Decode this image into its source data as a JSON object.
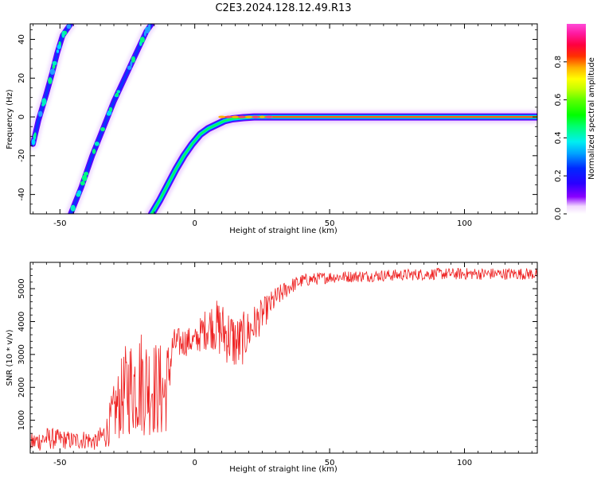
{
  "title": "C2E3.2024.128.12.49.R13",
  "colors": {
    "snr_line": "#ee2222",
    "frame": "#000000",
    "background": "#ffffff"
  },
  "chart_data": [
    {
      "type": "heatmap",
      "xlabel": "Height of straight line (km)",
      "ylabel": "Frequency (Hz)",
      "xlim": [
        -61,
        127
      ],
      "ylim": [
        -50,
        48
      ],
      "xticks": [
        -50,
        0,
        50,
        100
      ],
      "yticks": [
        -40,
        -20,
        0,
        20,
        40
      ],
      "grid": false,
      "colorbar": {
        "label": "Normalized spectral amplitude",
        "range": [
          0,
          1
        ],
        "ticks": [
          0.0,
          0.2,
          0.4,
          0.6,
          0.8
        ],
        "colormap": "gist_ncar-like (white, purple, blue, cyan, green, yellow, orange, red, pink)"
      },
      "traces": [
        {
          "description": "main trace",
          "points": [
            [
              -16,
              -50
            ],
            [
              -13,
              -43
            ],
            [
              -10,
              -35
            ],
            [
              -7,
              -27
            ],
            [
              -4,
              -20
            ],
            [
              -1,
              -14
            ],
            [
              2,
              -9
            ],
            [
              5,
              -6
            ],
            [
              8,
              -4
            ],
            [
              11,
              -2
            ],
            [
              14,
              -1
            ],
            [
              18,
              -0.4
            ],
            [
              22,
              0
            ],
            [
              30,
              0
            ],
            [
              127,
              0
            ]
          ],
          "peak_amplitude_x_range": [
            10,
            28
          ],
          "vertical_extent_hz": 1.5
        },
        {
          "description": "aliased trace A",
          "points": [
            [
              -46,
              -50
            ],
            [
              -42,
              -36
            ],
            [
              -38,
              -20
            ],
            [
              -34,
              -6
            ],
            [
              -30,
              8
            ],
            [
              -26,
              20
            ],
            [
              -22,
              32
            ],
            [
              -18,
              44
            ],
            [
              -16,
              48
            ]
          ]
        },
        {
          "description": "aliased trace B",
          "points": [
            [
              -60,
              -14
            ],
            [
              -58,
              -2
            ],
            [
              -55,
              12
            ],
            [
              -53,
              22
            ],
            [
              -51,
              33
            ],
            [
              -49,
              42
            ],
            [
              -46,
              48
            ]
          ]
        }
      ]
    },
    {
      "type": "line",
      "xlabel": "Height of straight line (km)",
      "ylabel": "SNR (10 * v/v)",
      "xlim": [
        -61,
        127
      ],
      "ylim": [
        0,
        5800
      ],
      "xticks": [
        -50,
        0,
        50,
        100
      ],
      "yticks": [
        1000,
        2000,
        3000,
        4000,
        5000
      ],
      "grid": false,
      "series": [
        {
          "color": "#ee2222",
          "envelope": [
            {
              "x": -61,
              "mean": 300,
              "noise": 300
            },
            {
              "x": -55,
              "mean": 450,
              "noise": 350
            },
            {
              "x": -50,
              "mean": 420,
              "noise": 300
            },
            {
              "x": -45,
              "mean": 380,
              "noise": 280
            },
            {
              "x": -40,
              "mean": 420,
              "noise": 300
            },
            {
              "x": -37,
              "mean": 330,
              "noise": 250
            },
            {
              "x": -33,
              "mean": 600,
              "noise": 450
            },
            {
              "x": -30,
              "mean": 1200,
              "noise": 900
            },
            {
              "x": -25,
              "mean": 2000,
              "noise": 1500
            },
            {
              "x": -20,
              "mean": 2200,
              "noise": 1700
            },
            {
              "x": -15,
              "mean": 2000,
              "noise": 1500
            },
            {
              "x": -11,
              "mean": 1800,
              "noise": 1500
            },
            {
              "x": -8,
              "mean": 3300,
              "noise": 500
            },
            {
              "x": -3,
              "mean": 3400,
              "noise": 450
            },
            {
              "x": 0,
              "mean": 3400,
              "noise": 400
            },
            {
              "x": 3,
              "mean": 3700,
              "noise": 600
            },
            {
              "x": 6,
              "mean": 3900,
              "noise": 700
            },
            {
              "x": 9,
              "mean": 3800,
              "noise": 900
            },
            {
              "x": 12,
              "mean": 3600,
              "noise": 900
            },
            {
              "x": 16,
              "mean": 3300,
              "noise": 900
            },
            {
              "x": 20,
              "mean": 3700,
              "noise": 700
            },
            {
              "x": 25,
              "mean": 4200,
              "noise": 500
            },
            {
              "x": 30,
              "mean": 4700,
              "noise": 350
            },
            {
              "x": 35,
              "mean": 5050,
              "noise": 250
            },
            {
              "x": 40,
              "mean": 5250,
              "noise": 200
            },
            {
              "x": 50,
              "mean": 5350,
              "noise": 180
            },
            {
              "x": 70,
              "mean": 5400,
              "noise": 180
            },
            {
              "x": 90,
              "mean": 5450,
              "noise": 180
            },
            {
              "x": 110,
              "mean": 5450,
              "noise": 180
            },
            {
              "x": 127,
              "mean": 5450,
              "noise": 180
            }
          ]
        }
      ]
    }
  ]
}
